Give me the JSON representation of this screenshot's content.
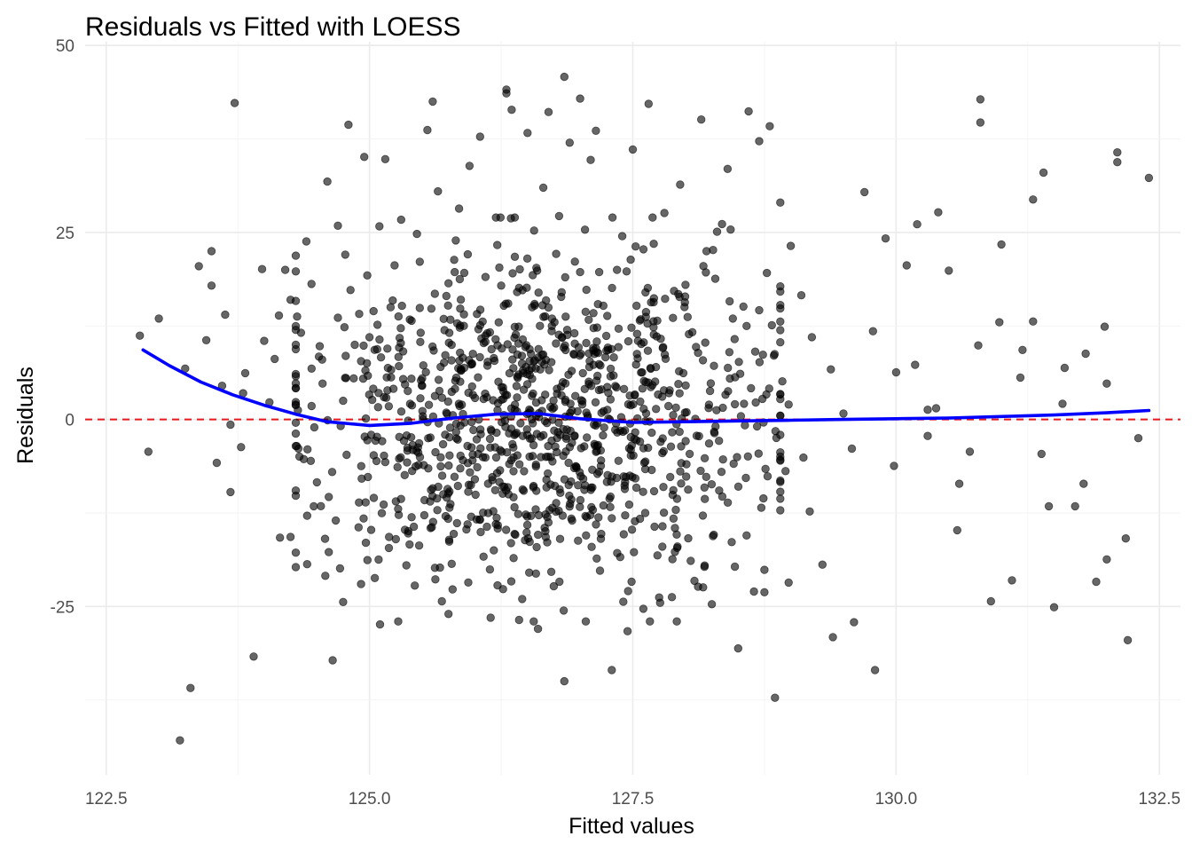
{
  "chart_data": {
    "type": "scatter",
    "title": "Residuals vs Fitted with LOESS",
    "xlabel": "Fitted values",
    "ylabel": "Residuals",
    "xlim": [
      122.3,
      132.7
    ],
    "ylim": [
      -47.5,
      50.5
    ],
    "x_ticks": [
      122.5,
      125.0,
      127.5,
      130.0,
      132.5
    ],
    "x_tick_labels": [
      "122.5",
      "125.0",
      "127.5",
      "130.0",
      "132.5"
    ],
    "y_ticks": [
      -25,
      0,
      25,
      50
    ],
    "y_tick_labels": [
      "-25",
      "0",
      "25",
      "50"
    ],
    "grid": true,
    "legend": "none",
    "reference_line": {
      "y": 0,
      "style": "dashed",
      "color": "#e41a1c"
    },
    "colors": {
      "points": "#000000",
      "loess": "#0000ff",
      "reference": "#e41a1c"
    },
    "loess": {
      "x": [
        122.85,
        123.1,
        123.4,
        123.7,
        124.0,
        124.3,
        124.6,
        125.0,
        125.4,
        125.8,
        126.2,
        126.6,
        127.0,
        127.5,
        128.0,
        128.5,
        129.0,
        129.5,
        130.0,
        130.5,
        131.0,
        131.5,
        132.0,
        132.4
      ],
      "y": [
        9.3,
        7.2,
        5.0,
        3.3,
        1.9,
        0.7,
        -0.3,
        -0.8,
        -0.5,
        0.2,
        0.7,
        0.8,
        0.1,
        -0.4,
        -0.3,
        -0.2,
        -0.1,
        0.0,
        0.1,
        0.2,
        0.4,
        0.6,
        0.9,
        1.2
      ]
    },
    "points": {
      "x": [
        122.82,
        123.25,
        123.38,
        123.45,
        123.5,
        123.55,
        123.6,
        123.68,
        123.72,
        123.78,
        123.82,
        123.9,
        123.98,
        124.05,
        124.1,
        124.15,
        124.2,
        124.25,
        124.3,
        124.35,
        124.4,
        124.45,
        124.5,
        124.55,
        124.6,
        124.65,
        124.7,
        124.75,
        124.8,
        124.85,
        124.9,
        124.95,
        125.0,
        125.05,
        125.1,
        125.15,
        125.2,
        125.25,
        125.3,
        125.35,
        125.4,
        125.45,
        125.5,
        125.55,
        125.6,
        125.65,
        125.7,
        125.75,
        125.8,
        125.85,
        125.9,
        125.95,
        126.0,
        126.05,
        126.1,
        126.15,
        126.2,
        126.25,
        126.3,
        126.35,
        126.4,
        126.45,
        126.5,
        126.55,
        126.6,
        126.65,
        126.7,
        126.75,
        126.8,
        126.85,
        126.9,
        126.95,
        127.0,
        127.05,
        127.1,
        127.15,
        127.2,
        127.25,
        127.3,
        127.35,
        127.4,
        127.45,
        127.5,
        127.55,
        127.6,
        127.65,
        127.7,
        127.75,
        127.8,
        127.85,
        127.9,
        127.95,
        128.0,
        128.05,
        128.1,
        128.15,
        128.2,
        128.25,
        128.3,
        128.35,
        128.4,
        128.45,
        128.5,
        128.55,
        128.6,
        128.65,
        128.7,
        128.75,
        128.8,
        128.85,
        128.9,
        128.95,
        129.0,
        129.1,
        129.2,
        129.3,
        129.4,
        129.5,
        129.6,
        129.7,
        129.8,
        129.9,
        130.0,
        130.1,
        130.2,
        130.3,
        130.4,
        130.5,
        130.6,
        130.7,
        130.8,
        130.9,
        131.0,
        131.1,
        131.2,
        131.3,
        131.4,
        131.5,
        131.6,
        131.7,
        131.8,
        131.9,
        132.0,
        132.1,
        132.2,
        132.3,
        132.4,
        123.63,
        123.68,
        124.14,
        124.3,
        124.7,
        124.72,
        125.5,
        125.6,
        126.3,
        126.42,
        126.85,
        127.0,
        127.15,
        127.3,
        127.9,
        128.7,
        128.75,
        130.3,
        130.8,
        131.3,
        131.45,
        132.0,
        132.1,
        122.9,
        123.0,
        123.2,
        123.3,
        123.5,
        123.8,
        124.0,
        124.25,
        124.45,
        124.75,
        124.92,
        125.15,
        125.32,
        125.58,
        125.78,
        125.98,
        126.18,
        126.38,
        126.58,
        126.78,
        126.98,
        127.18,
        127.38,
        127.58,
        127.78,
        127.98,
        128.18,
        128.38,
        128.58,
        128.78,
        128.98,
        129.18,
        129.38,
        129.58,
        129.78,
        129.98,
        130.18,
        130.38,
        130.58,
        130.78,
        130.98,
        131.18,
        131.38,
        131.58,
        131.78,
        131.98,
        132.18,
        124.68,
        125.12,
        125.52,
        125.92,
        126.32,
        126.72,
        127.12,
        127.52,
        127.92,
        128.32,
        128.72,
        129.12,
        124.58,
        124.98,
        125.38,
        125.78,
        126.18,
        126.58,
        126.98,
        127.38,
        127.78,
        128.18,
        128.58,
        128.98,
        124.82,
        125.22,
        125.62,
        126.02,
        126.42,
        126.82,
        127.22,
        127.62,
        128.02,
        128.42,
        128.82,
        124.52,
        124.92,
        125.32,
        125.72,
        126.12,
        126.52,
        126.92,
        127.32,
        127.72,
        128.12,
        128.52,
        128.92
      ],
      "y": [
        11.2,
        6.8,
        20.5,
        10.6,
        22.5,
        -5.8,
        4.5,
        -9.7,
        42.3,
        -3.7,
        6.2,
        -31.7,
        20.1,
        2.3,
        8.1,
        -15.8,
        20.0,
        16.0,
        -17.8,
        11.6,
        23.8,
        1.8,
        -8.4,
        8.0,
        31.8,
        -32.2,
        13.6,
        -24.4,
        39.4,
        5.5,
        -11.1,
        35.1,
        11.0,
        -21.2,
        -27.4,
        34.8,
        15.0,
        -16.0,
        26.7,
        -19.5,
        13.2,
        24.8,
        4.5,
        38.7,
        42.5,
        30.5,
        -10.0,
        18.2,
        -15.3,
        28.2,
        19.6,
        33.9,
        -8.0,
        37.8,
        11.2,
        -26.5,
        -14.0,
        17.9,
        43.6,
        41.4,
        1.1,
        -24.0,
        38.3,
        19.3,
        -28.0,
        31.0,
        41.1,
        -22.3,
        27.2,
        -35.0,
        37.0,
        21.1,
        42.9,
        -12.9,
        34.7,
        38.6,
        -15.3,
        9.2,
        -33.5,
        20.0,
        24.5,
        -28.3,
        36.1,
        10.5,
        -25.3,
        42.2,
        16.2,
        -23.8,
        27.6,
        3.9,
        -14.5,
        31.4,
        18.0,
        -18.9,
        9.7,
        40.1,
        22.5,
        -24.7,
        25.1,
        -10.3,
        33.5,
        13.5,
        -30.6,
        15.1,
        41.2,
        -23.0,
        37.2,
        -20.1,
        39.2,
        -37.2,
        29.0,
        -6.9,
        23.2,
        16.6,
        11.0,
        -19.4,
        -29.1,
        0.8,
        -27.1,
        30.4,
        -33.5,
        24.2,
        6.3,
        20.6,
        26.1,
        -2.2,
        27.7,
        19.9,
        -8.6,
        -4.3,
        39.7,
        -24.3,
        23.4,
        -21.5,
        9.3,
        13.1,
        33.0,
        -25.1,
        6.9,
        -11.6,
        8.8,
        -21.7,
        -18.7,
        34.4,
        -29.5,
        -2.5,
        32.3,
        14.0,
        -0.7,
        13.9,
        21.9,
        25.9,
        -19.9,
        5.5,
        -9.2,
        44.1,
        -26.8,
        45.8,
        19.7,
        9.5,
        -13.2,
        -17.7,
        14.6,
        -23.1,
        1.3,
        42.8,
        29.4,
        -11.6,
        4.8,
        35.7,
        -4.3,
        13.5,
        -42.9,
        -35.9,
        17.9,
        3.5,
        10.5,
        -15.7,
        6.8,
        2.5,
        -22.0,
        -5.7,
        5.4,
        -14.5,
        3.7,
        -4.7,
        8.2,
        1.3,
        -6.3,
        4.1,
        -8.8,
        7.4,
        -1.5,
        10.1,
        -4.5,
        6.2,
        -9.1,
        3.3,
        12.5,
        -7.6,
        2.0,
        -12.3,
        6.7,
        -3.9,
        11.8,
        -6.2,
        7.3,
        1.5,
        -14.8,
        9.9,
        13.0,
        5.6,
        -4.6,
        2.1,
        -8.6,
        12.4,
        -15.9,
        -13.5,
        -2.9,
        -12.8,
        -14.7,
        -10.0,
        -8.7,
        -12.1,
        -13.6,
        -10.6,
        -9.5,
        -11.8,
        -5.1,
        -20.9,
        -18.8,
        -16.7,
        -19.3,
        -17.5,
        -20.6,
        -16.2,
        -18.4,
        -17.0,
        -19.7,
        -15.5,
        -21.8,
        17.3,
        15.9,
        16.8,
        14.1,
        17.6,
        16.4,
        15.2,
        17.0,
        13.7,
        15.8,
        12.6,
        8.4,
        7.8,
        9.1,
        8.6,
        7.2,
        9.4,
        6.5,
        8.3,
        7.0,
        8.9,
        6.1,
        5.1
      ],
      "dense_cloud": {
        "count": 1000,
        "x_range": [
          124.3,
          128.9
        ],
        "y_range": [
          -27,
          27
        ]
      }
    }
  }
}
